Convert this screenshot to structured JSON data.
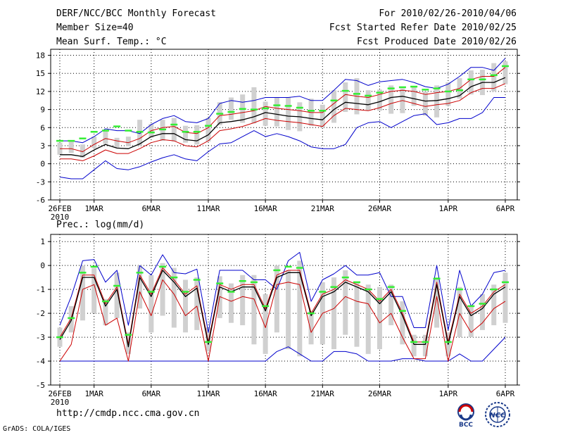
{
  "header": {
    "left": [
      "DERF/NCC/BCC Monthly Forecast",
      "Member Size=40",
      "Mean Surf. Temp.: °C"
    ],
    "right": [
      "For 2010/02/26-2010/04/06",
      "Fcst Started Refer Date 2010/02/25",
      "Fcst Produced Date 2010/02/26"
    ]
  },
  "footer": {
    "url": "http://cmdp.ncc.cma.gov.cn",
    "credit": "GrADS: COLA/IGES",
    "logo_left": "BCC",
    "logo_right": "NCC"
  },
  "colors": {
    "mean": "#000000",
    "spread": "#cc0000",
    "extreme": "#0000cc",
    "box": "#d0d0d0",
    "median": "#33ee33",
    "grid": "#000000"
  },
  "chart_data": [
    {
      "type": "line",
      "name": "temperature",
      "title": "Mean Surf. Temp.: °C",
      "ylabel": "°C",
      "ylim": [
        -6,
        19
      ],
      "yticks": [
        -6,
        -3,
        0,
        3,
        6,
        9,
        12,
        15,
        18
      ],
      "xticks": [
        {
          "day": 0,
          "label": "26FEB",
          "sub": "2010"
        },
        {
          "day": 3,
          "label": "1MAR"
        },
        {
          "day": 8,
          "label": "6MAR"
        },
        {
          "day": 13,
          "label": "11MAR"
        },
        {
          "day": 18,
          "label": "16MAR"
        },
        {
          "day": 23,
          "label": "21MAR"
        },
        {
          "day": 28,
          "label": "26MAR"
        },
        {
          "day": 34,
          "label": "1APR"
        },
        {
          "day": 39,
          "label": "6APR"
        }
      ],
      "days": 40,
      "series": [
        {
          "name": "max",
          "role": "extreme",
          "values": [
            3.8,
            3.8,
            3.5,
            4.5,
            5.8,
            5.5,
            5.5,
            5.0,
            6.5,
            7.5,
            8.0,
            7.0,
            6.8,
            7.5,
            10.0,
            10.5,
            10.2,
            10.5,
            11.0,
            11.0,
            11.0,
            11.2,
            10.5,
            10.5,
            12.2,
            14.0,
            13.8,
            13.0,
            13.6,
            13.8,
            14.0,
            13.5,
            12.8,
            12.5,
            13.2,
            14.5,
            16.0,
            16.0,
            15.5,
            17.5
          ]
        },
        {
          "name": "upper",
          "role": "spread",
          "values": [
            2.5,
            2.5,
            2.0,
            3.2,
            4.2,
            3.8,
            3.5,
            4.2,
            5.5,
            6.0,
            6.2,
            5.2,
            5.0,
            6.0,
            8.0,
            8.2,
            8.5,
            8.8,
            9.5,
            9.2,
            9.0,
            8.8,
            8.5,
            8.5,
            10.0,
            11.5,
            11.2,
            11.0,
            11.5,
            12.0,
            12.2,
            12.0,
            11.5,
            11.8,
            12.0,
            12.5,
            14.0,
            14.5,
            14.5,
            16.0
          ]
        },
        {
          "name": "mean",
          "role": "mean",
          "values": [
            1.5,
            1.5,
            1.2,
            2.3,
            3.2,
            2.6,
            2.5,
            3.3,
            4.5,
            5.0,
            5.0,
            4.0,
            3.8,
            4.8,
            6.8,
            7.0,
            7.3,
            7.8,
            8.5,
            8.2,
            7.9,
            7.8,
            7.5,
            7.3,
            9.0,
            10.2,
            10.0,
            9.8,
            10.3,
            11.0,
            11.2,
            10.8,
            10.4,
            10.5,
            10.8,
            11.3,
            12.8,
            13.5,
            13.5,
            14.3
          ]
        },
        {
          "name": "lower",
          "role": "spread",
          "values": [
            0.8,
            0.8,
            0.5,
            1.3,
            2.3,
            1.7,
            1.7,
            2.5,
            3.5,
            4.0,
            3.8,
            3.0,
            2.8,
            3.8,
            5.5,
            5.8,
            6.2,
            6.8,
            7.5,
            7.2,
            7.0,
            6.8,
            6.5,
            6.2,
            8.0,
            9.2,
            9.0,
            8.8,
            9.3,
            10.0,
            10.5,
            10.0,
            9.5,
            9.8,
            10.0,
            10.5,
            11.8,
            12.5,
            12.5,
            13.3
          ]
        },
        {
          "name": "min",
          "role": "extreme",
          "values": [
            -2.2,
            -2.5,
            -2.5,
            -1.0,
            0.5,
            -0.8,
            -1.0,
            -0.5,
            0.3,
            1.0,
            1.5,
            0.8,
            0.5,
            2.0,
            3.3,
            3.5,
            4.5,
            5.5,
            4.5,
            5.0,
            4.5,
            3.8,
            2.8,
            2.5,
            2.5,
            3.2,
            6.0,
            6.8,
            7.0,
            6.0,
            7.0,
            8.0,
            8.3,
            6.5,
            6.8,
            7.5,
            7.5,
            8.5,
            11.0,
            11.0
          ]
        },
        {
          "name": "median",
          "role": "median",
          "values": [
            3.8,
            3.8,
            4.2,
            5.3,
            5.5,
            6.2,
            5.5,
            5.3,
            5.2,
            5.7,
            6.5,
            5.3,
            5.3,
            6.3,
            8.3,
            8.6,
            9.1,
            9.0,
            9.2,
            9.7,
            9.6,
            9.3,
            8.8,
            8.8,
            10.5,
            12.1,
            11.6,
            11.3,
            11.8,
            12.5,
            12.7,
            12.8,
            12.3,
            12.5,
            12.0,
            12.2,
            14.0,
            14.0,
            14.7,
            16.2
          ]
        },
        {
          "name": "box_top",
          "role": "box",
          "values": [
            3.5,
            3.7,
            3.2,
            4.5,
            5.5,
            4.3,
            4.5,
            7.3,
            6.6,
            7.3,
            7.6,
            6.3,
            6.4,
            7.6,
            10.2,
            11.0,
            11.5,
            12.7,
            10.3,
            11.0,
            11.0,
            10.2,
            10.8,
            9.8,
            12.2,
            13.5,
            14.2,
            12.2,
            12.3,
            13.0,
            12.5,
            12.8,
            12.0,
            13.0,
            13.5,
            14.2,
            15.5,
            15.6,
            16.7,
            17.0
          ]
        },
        {
          "name": "box_bottom",
          "role": "box",
          "values": [
            1.5,
            1.8,
            1.0,
            2.6,
            3.3,
            2.7,
            2.9,
            3.0,
            4.3,
            3.8,
            3.7,
            3.5,
            3.2,
            3.7,
            6.4,
            7.3,
            6.8,
            6.7,
            6.3,
            6.2,
            5.6,
            5.4,
            6.3,
            6.0,
            6.8,
            8.6,
            8.2,
            8.8,
            8.8,
            8.3,
            8.4,
            9.6,
            8.0,
            7.7,
            9.6,
            10.8,
            11.5,
            11.4,
            12.0,
            13.2
          ]
        }
      ]
    },
    {
      "type": "line",
      "name": "precipitation",
      "title": "Prec.: log(mm/d)",
      "ylabel": "log(mm/d)",
      "ylim": [
        -5,
        1.3
      ],
      "yticks": [
        -5,
        -4,
        -3,
        -2,
        -1,
        0,
        1
      ],
      "xticks": [
        {
          "day": 0,
          "label": "26FEB",
          "sub": "2010"
        },
        {
          "day": 3,
          "label": "1MAR"
        },
        {
          "day": 8,
          "label": "6MAR"
        },
        {
          "day": 13,
          "label": "11MAR"
        },
        {
          "day": 18,
          "label": "16MAR"
        },
        {
          "day": 23,
          "label": "21MAR"
        },
        {
          "day": 28,
          "label": "26MAR"
        },
        {
          "day": 34,
          "label": "1APR"
        },
        {
          "day": 39,
          "label": "6APR"
        }
      ],
      "days": 40,
      "series": [
        {
          "name": "max",
          "role": "extreme",
          "values": [
            -2.5,
            -1.3,
            0.2,
            0.25,
            -0.7,
            -0.2,
            -2.5,
            0.0,
            -0.4,
            0.45,
            -0.3,
            -0.35,
            -0.15,
            -2.8,
            -0.2,
            -0.2,
            -0.2,
            -0.6,
            -0.6,
            -1.0,
            0.2,
            0.55,
            -1.5,
            -0.6,
            -0.35,
            0.0,
            -0.4,
            -0.4,
            -0.3,
            -1.3,
            -1.3,
            -2.6,
            -2.6,
            0.0,
            -2.7,
            -0.2,
            -1.7,
            -1.2,
            -0.3,
            -0.2
          ]
        },
        {
          "name": "upper",
          "role": "spread",
          "values": [
            -3.0,
            -2.2,
            -0.4,
            -0.4,
            -1.6,
            -0.9,
            -3.3,
            -0.4,
            -1.2,
            -0.1,
            -0.6,
            -1.2,
            -0.85,
            -3.2,
            -0.8,
            -1.0,
            -0.8,
            -0.8,
            -1.8,
            -0.4,
            -0.2,
            -0.2,
            -2.0,
            -1.2,
            -1.0,
            -0.6,
            -0.8,
            -1.0,
            -1.5,
            -1.0,
            -2.0,
            -3.2,
            -3.2,
            -0.7,
            -3.2,
            -1.2,
            -2.0,
            -1.7,
            -1.1,
            -0.8
          ]
        },
        {
          "name": "mean",
          "role": "mean",
          "values": [
            -3.1,
            -2.3,
            -0.5,
            -0.5,
            -1.7,
            -1.0,
            -3.4,
            -0.5,
            -1.3,
            -0.2,
            -0.7,
            -1.3,
            -0.95,
            -3.3,
            -0.9,
            -1.1,
            -0.9,
            -0.9,
            -1.9,
            -0.5,
            -0.3,
            -0.3,
            -2.1,
            -1.3,
            -1.1,
            -0.7,
            -0.9,
            -1.1,
            -1.6,
            -1.1,
            -2.1,
            -3.3,
            -3.3,
            -0.8,
            -3.3,
            -1.3,
            -2.1,
            -1.8,
            -1.2,
            -0.9
          ]
        },
        {
          "name": "lower",
          "role": "spread",
          "values": [
            -4.0,
            -3.3,
            -1.0,
            -0.8,
            -2.5,
            -2.2,
            -4.0,
            -1.1,
            -2.1,
            -0.6,
            -1.2,
            -2.1,
            -1.7,
            -4.0,
            -1.3,
            -1.5,
            -1.3,
            -1.4,
            -2.6,
            -0.8,
            -0.7,
            -0.8,
            -2.8,
            -2.0,
            -1.8,
            -1.3,
            -1.5,
            -1.6,
            -2.4,
            -2.0,
            -3.0,
            -3.9,
            -3.9,
            -1.3,
            -4.0,
            -2.0,
            -2.8,
            -2.4,
            -1.8,
            -1.5
          ]
        },
        {
          "name": "min",
          "role": "extreme",
          "values": [
            -4.0,
            -4.0,
            -4.0,
            -4.0,
            -4.0,
            -4.0,
            -4.0,
            -4.0,
            -4.0,
            -4.0,
            -4.0,
            -4.0,
            -4.0,
            -4.0,
            -4.0,
            -4.0,
            -4.0,
            -4.0,
            -4.0,
            -3.6,
            -3.4,
            -3.7,
            -4.0,
            -4.0,
            -3.6,
            -3.6,
            -3.7,
            -4.0,
            -4.0,
            -4.0,
            -3.9,
            -3.9,
            -4.0,
            -4.0,
            -4.0,
            -3.7,
            -4.0,
            -4.0,
            -3.5,
            -3.0
          ]
        },
        {
          "name": "median",
          "role": "median",
          "values": [
            -3.0,
            -2.2,
            -0.3,
            -0.05,
            -1.5,
            -0.85,
            -2.9,
            -0.3,
            -1.1,
            -0.05,
            -0.5,
            -1.1,
            -0.6,
            -3.2,
            -0.75,
            -1.1,
            -0.65,
            -0.7,
            -1.7,
            -0.2,
            -0.05,
            -0.1,
            -2.0,
            -1.1,
            -0.9,
            -0.5,
            -0.7,
            -1.0,
            -1.4,
            -0.9,
            -1.9,
            -3.2,
            -3.2,
            -0.55,
            -3.2,
            -1.0,
            -1.7,
            -1.6,
            -1.0,
            -0.7
          ]
        },
        {
          "name": "box_top",
          "role": "box",
          "values": [
            -2.6,
            -1.7,
            0.0,
            -0.1,
            -1.4,
            -0.3,
            -2.8,
            0.0,
            -0.4,
            0.1,
            -0.1,
            -0.6,
            -0.5,
            -2.6,
            -0.45,
            -0.75,
            -0.4,
            -0.4,
            -1.2,
            0.0,
            -0.2,
            0.2,
            -1.9,
            -0.7,
            -0.5,
            -0.2,
            -0.7,
            -0.8,
            -0.9,
            -0.8,
            -1.5,
            -2.9,
            -2.9,
            -0.5,
            -2.8,
            -0.9,
            -1.7,
            -1.2,
            -0.8,
            -0.3
          ]
        },
        {
          "name": "box_bottom",
          "role": "box",
          "values": [
            -3.4,
            -2.8,
            -2.3,
            -2.0,
            -2.5,
            -2.2,
            -3.7,
            -1.8,
            -2.8,
            -2.1,
            -2.6,
            -2.8,
            -2.7,
            -3.6,
            -2.2,
            -2.4,
            -2.5,
            -3.3,
            -3.7,
            -2.8,
            -3.5,
            -3.8,
            -3.3,
            -3.3,
            -3.5,
            -2.9,
            -3.4,
            -3.7,
            -3.5,
            -2.5,
            -3.3,
            -3.8,
            -3.8,
            -2.6,
            -3.8,
            -3.0,
            -3.0,
            -2.7,
            -2.5,
            -2.4
          ]
        }
      ]
    }
  ]
}
